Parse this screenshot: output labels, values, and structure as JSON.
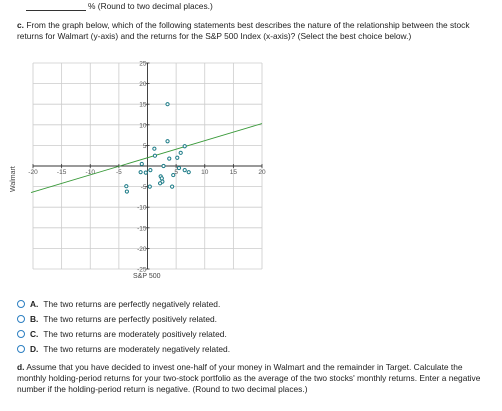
{
  "top_note": "% (Round to two decimal places.)",
  "part_c": {
    "label": "c.",
    "text": "From the graph below, which of the following statements best describes the nature of the relationship between the stock returns for Walmart (y-axis) and the returns for the S&P 500 Index (x-axis)? (Select the best choice below.)"
  },
  "chart_data": {
    "type": "scatter",
    "xlabel": "S&P 500",
    "ylabel": "Walmart",
    "xlim": [
      -20,
      20
    ],
    "ylim": [
      -25,
      25
    ],
    "x_ticks": [
      -20,
      -15,
      -10,
      -5,
      5,
      10,
      15,
      20
    ],
    "y_ticks": [
      -25,
      -20,
      -15,
      -10,
      -5,
      5,
      10,
      15,
      20,
      25
    ],
    "x_tick_labels": [
      "-20",
      "-15",
      "-10",
      "-5",
      "5",
      "10",
      "15",
      "20"
    ],
    "y_tick_labels": [
      "25",
      "20",
      "15",
      "10",
      "5",
      "-5",
      "-10",
      "-15",
      "-20",
      "-25"
    ],
    "grid": true,
    "trend_line": {
      "x": [
        -20,
        20
      ],
      "y": [
        -6.2,
        10.3
      ],
      "color": "#3a9a3a"
    },
    "point_color": "#1a7a86",
    "points": [
      {
        "x": 3.5,
        "y": 15
      },
      {
        "x": 3.5,
        "y": 6
      },
      {
        "x": 1.2,
        "y": 4.2
      },
      {
        "x": 6.5,
        "y": 4.8
      },
      {
        "x": 5.8,
        "y": 3.2
      },
      {
        "x": 1.3,
        "y": 2.5
      },
      {
        "x": 5.2,
        "y": 2
      },
      {
        "x": 3.8,
        "y": 1.8
      },
      {
        "x": -1,
        "y": 0.5
      },
      {
        "x": 5.5,
        "y": -0.5
      },
      {
        "x": 2.8,
        "y": 0
      },
      {
        "x": 0.5,
        "y": -1
      },
      {
        "x": -1.2,
        "y": -1.5
      },
      {
        "x": -0.3,
        "y": -1.6
      },
      {
        "x": 6.5,
        "y": -1
      },
      {
        "x": 7.2,
        "y": -1.5
      },
      {
        "x": 2.3,
        "y": -2.5
      },
      {
        "x": 4.5,
        "y": -2.2
      },
      {
        "x": 2.5,
        "y": -3
      },
      {
        "x": 2.6,
        "y": -3.8
      },
      {
        "x": 2.2,
        "y": -4.2
      },
      {
        "x": 0.4,
        "y": -5
      },
      {
        "x": 4.3,
        "y": -5
      },
      {
        "x": -3.7,
        "y": -4.9
      },
      {
        "x": -3.6,
        "y": -6.2
      }
    ]
  },
  "options": [
    {
      "letter": "A.",
      "text": "The two returns are perfectly negatively related."
    },
    {
      "letter": "B.",
      "text": "The two returns are perfectly positively related."
    },
    {
      "letter": "C.",
      "text": "The two returns are moderately positively related."
    },
    {
      "letter": "D.",
      "text": "The two returns are moderately negatively related."
    }
  ],
  "part_d": {
    "label": "d.",
    "text": "Assume that you have decided to invest one-half of your money in Walmart and the remainder in Target. Calculate the monthly holding-period returns for your two-stock portfolio as the average of the two stocks' monthly returns. Enter a negative number if the holding-period return is negative. (Round to two decimal places.)"
  },
  "colors": {
    "radio": "#2d7fc1",
    "grid": "#cccccc",
    "axis": "#333333"
  }
}
